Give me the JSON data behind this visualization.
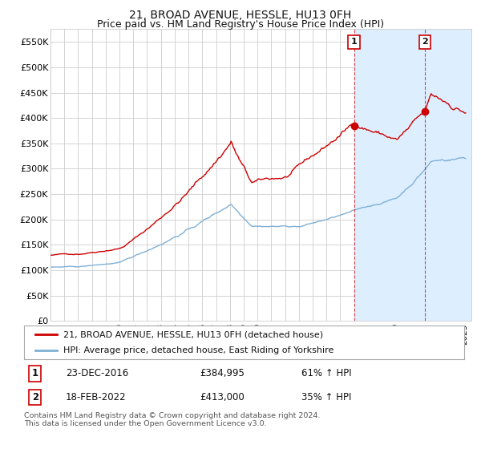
{
  "title": "21, BROAD AVENUE, HESSLE, HU13 0FH",
  "subtitle": "Price paid vs. HM Land Registry's House Price Index (HPI)",
  "ylabel_ticks": [
    "£0",
    "£50K",
    "£100K",
    "£150K",
    "£200K",
    "£250K",
    "£300K",
    "£350K",
    "£400K",
    "£450K",
    "£500K",
    "£550K"
  ],
  "ytick_vals": [
    0,
    50000,
    100000,
    150000,
    200000,
    250000,
    300000,
    350000,
    400000,
    450000,
    500000,
    550000
  ],
  "ylim": [
    0,
    575000
  ],
  "xlim_start": 1995.0,
  "xlim_end": 2025.5,
  "red_line_color": "#cc0000",
  "blue_line_color": "#7fb0d5",
  "shade_color": "#ddeeff",
  "marker1_date": 2017.0,
  "marker2_date": 2022.12,
  "marker1_price": 384995,
  "marker2_price": 413000,
  "legend_line1": "21, BROAD AVENUE, HESSLE, HU13 0FH (detached house)",
  "legend_line2": "HPI: Average price, detached house, East Riding of Yorkshire",
  "table_row1": [
    "1",
    "23-DEC-2016",
    "£384,995",
    "61% ↑ HPI"
  ],
  "table_row2": [
    "2",
    "18-FEB-2022",
    "£413,000",
    "35% ↑ HPI"
  ],
  "footer": "Contains HM Land Registry data © Crown copyright and database right 2024.\nThis data is licensed under the Open Government Licence v3.0.",
  "background_color": "#ffffff",
  "grid_color": "#cccccc",
  "title_fontsize": 10,
  "subtitle_fontsize": 9
}
